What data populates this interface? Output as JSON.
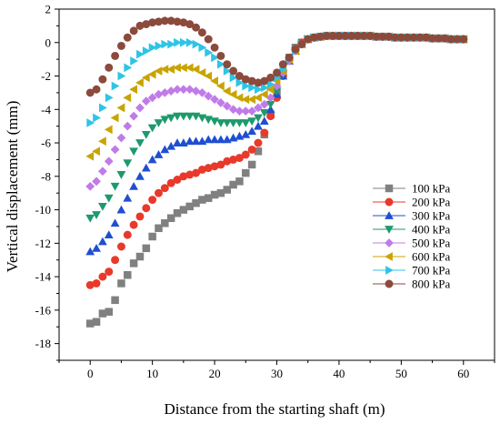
{
  "chart_data": {
    "type": "scatter",
    "xlabel": "Distance from the starting shaft (m)",
    "ylabel": "Vertical displacement (mm)",
    "xlim": [
      -5,
      65
    ],
    "ylim": [
      -19,
      2
    ],
    "x_ticks": [
      0,
      10,
      20,
      30,
      40,
      50,
      60
    ],
    "y_ticks": [
      2,
      0,
      -2,
      -4,
      -6,
      -8,
      -10,
      -12,
      -14,
      -16,
      -18
    ],
    "grid": false,
    "legend_position": "right",
    "series": [
      {
        "name": "100 kPa",
        "color": "#808080",
        "marker": "square",
        "x": [
          0,
          1,
          2,
          3,
          4,
          5,
          6,
          7,
          8,
          9,
          10,
          11,
          12,
          13,
          14,
          15,
          16,
          17,
          18,
          19,
          20,
          21,
          22,
          23,
          24,
          25,
          26,
          27,
          28,
          29,
          30,
          31,
          32,
          33,
          34,
          35,
          36,
          37,
          38,
          39,
          40,
          41,
          42,
          43,
          44,
          45,
          46,
          47,
          48,
          49,
          50,
          51,
          52,
          53,
          54,
          55,
          56,
          57,
          58,
          59,
          60
        ],
        "y": [
          -16.8,
          -16.7,
          -16.2,
          -16.1,
          -15.4,
          -14.4,
          -13.9,
          -13.2,
          -12.8,
          -12.3,
          -11.6,
          -11.1,
          -10.8,
          -10.5,
          -10.2,
          -10.0,
          -9.8,
          -9.6,
          -9.4,
          -9.3,
          -9.1,
          -9.0,
          -8.8,
          -8.5,
          -8.3,
          -7.8,
          -7.3,
          -6.5,
          -5.5,
          -4.3,
          -3.0,
          -1.8,
          -0.9,
          -0.3,
          0.0,
          0.2,
          0.3,
          0.35,
          0.4,
          0.4,
          0.4,
          0.4,
          0.4,
          0.4,
          0.4,
          0.4,
          0.35,
          0.35,
          0.35,
          0.3,
          0.3,
          0.3,
          0.3,
          0.3,
          0.3,
          0.25,
          0.25,
          0.25,
          0.2,
          0.2,
          0.2
        ]
      },
      {
        "name": "200 kPa",
        "color": "#e8392a",
        "marker": "circle",
        "x": [
          0,
          1,
          2,
          3,
          4,
          5,
          6,
          7,
          8,
          9,
          10,
          11,
          12,
          13,
          14,
          15,
          16,
          17,
          18,
          19,
          20,
          21,
          22,
          23,
          24,
          25,
          26,
          27,
          28,
          29,
          30,
          31,
          32,
          33,
          34,
          35,
          36,
          37,
          38,
          39,
          40,
          41,
          42,
          43,
          44,
          45,
          46,
          47,
          48,
          49,
          50,
          51,
          52,
          53,
          54,
          55,
          56,
          57,
          58,
          59,
          60
        ],
        "y": [
          -14.5,
          -14.4,
          -14.0,
          -13.7,
          -13.0,
          -12.2,
          -11.5,
          -10.9,
          -10.4,
          -9.9,
          -9.4,
          -9.0,
          -8.7,
          -8.4,
          -8.2,
          -8.0,
          -7.9,
          -7.8,
          -7.6,
          -7.5,
          -7.4,
          -7.3,
          -7.1,
          -7.0,
          -6.9,
          -6.7,
          -6.4,
          -6.0,
          -5.4,
          -4.4,
          -3.3,
          -2.0,
          -1.0,
          -0.4,
          0.0,
          0.2,
          0.3,
          0.35,
          0.4,
          0.4,
          0.4,
          0.4,
          0.4,
          0.4,
          0.4,
          0.4,
          0.35,
          0.35,
          0.35,
          0.3,
          0.3,
          0.3,
          0.3,
          0.3,
          0.3,
          0.25,
          0.25,
          0.25,
          0.2,
          0.2,
          0.2
        ]
      },
      {
        "name": "300 kPa",
        "color": "#1f4fd1",
        "marker": "triangle-up",
        "x": [
          0,
          1,
          2,
          3,
          4,
          5,
          6,
          7,
          8,
          9,
          10,
          11,
          12,
          13,
          14,
          15,
          16,
          17,
          18,
          19,
          20,
          21,
          22,
          23,
          24,
          25,
          26,
          27,
          28,
          29,
          30,
          31,
          32,
          33,
          34,
          35,
          36,
          37,
          38,
          39,
          40,
          41,
          42,
          43,
          44,
          45,
          46,
          47,
          48,
          49,
          50,
          51,
          52,
          53,
          54,
          55,
          56,
          57,
          58,
          59,
          60
        ],
        "y": [
          -12.5,
          -12.3,
          -11.9,
          -11.5,
          -10.8,
          -10.0,
          -9.3,
          -8.6,
          -8.0,
          -7.5,
          -7.0,
          -6.7,
          -6.4,
          -6.2,
          -6.0,
          -6.0,
          -5.9,
          -5.9,
          -5.9,
          -5.8,
          -5.8,
          -5.8,
          -5.8,
          -5.7,
          -5.6,
          -5.5,
          -5.3,
          -5.0,
          -4.7,
          -4.0,
          -3.1,
          -2.0,
          -1.1,
          -0.5,
          -0.1,
          0.2,
          0.3,
          0.35,
          0.4,
          0.4,
          0.4,
          0.4,
          0.4,
          0.4,
          0.4,
          0.4,
          0.35,
          0.35,
          0.35,
          0.3,
          0.3,
          0.3,
          0.3,
          0.3,
          0.3,
          0.25,
          0.25,
          0.25,
          0.2,
          0.2,
          0.2
        ]
      },
      {
        "name": "400 kPa",
        "color": "#1d9a6c",
        "marker": "triangle-down",
        "x": [
          0,
          1,
          2,
          3,
          4,
          5,
          6,
          7,
          8,
          9,
          10,
          11,
          12,
          13,
          14,
          15,
          16,
          17,
          18,
          19,
          20,
          21,
          22,
          23,
          24,
          25,
          26,
          27,
          28,
          29,
          30,
          31,
          32,
          33,
          34,
          35,
          36,
          37,
          38,
          39,
          40,
          41,
          42,
          43,
          44,
          45,
          46,
          47,
          48,
          49,
          50,
          51,
          52,
          53,
          54,
          55,
          56,
          57,
          58,
          59,
          60
        ],
        "y": [
          -10.5,
          -10.3,
          -9.8,
          -9.3,
          -8.6,
          -7.9,
          -7.2,
          -6.5,
          -6.0,
          -5.5,
          -5.1,
          -4.8,
          -4.6,
          -4.5,
          -4.4,
          -4.4,
          -4.4,
          -4.4,
          -4.5,
          -4.6,
          -4.7,
          -4.8,
          -4.8,
          -4.8,
          -4.8,
          -4.8,
          -4.7,
          -4.5,
          -4.2,
          -3.7,
          -2.9,
          -1.9,
          -1.1,
          -0.5,
          -0.1,
          0.2,
          0.3,
          0.35,
          0.4,
          0.4,
          0.4,
          0.4,
          0.4,
          0.4,
          0.4,
          0.4,
          0.35,
          0.35,
          0.35,
          0.3,
          0.3,
          0.3,
          0.3,
          0.3,
          0.3,
          0.25,
          0.25,
          0.25,
          0.2,
          0.2,
          0.2
        ]
      },
      {
        "name": "500 kPa",
        "color": "#c07be8",
        "marker": "diamond",
        "x": [
          0,
          1,
          2,
          3,
          4,
          5,
          6,
          7,
          8,
          9,
          10,
          11,
          12,
          13,
          14,
          15,
          16,
          17,
          18,
          19,
          20,
          21,
          22,
          23,
          24,
          25,
          26,
          27,
          28,
          29,
          30,
          31,
          32,
          33,
          34,
          35,
          36,
          37,
          38,
          39,
          40,
          41,
          42,
          43,
          44,
          45,
          46,
          47,
          48,
          49,
          50,
          51,
          52,
          53,
          54,
          55,
          56,
          57,
          58,
          59,
          60
        ],
        "y": [
          -8.6,
          -8.3,
          -7.7,
          -7.1,
          -6.4,
          -5.7,
          -5.0,
          -4.4,
          -3.9,
          -3.5,
          -3.3,
          -3.1,
          -3.0,
          -2.9,
          -2.8,
          -2.8,
          -2.8,
          -2.9,
          -3.0,
          -3.2,
          -3.4,
          -3.6,
          -3.8,
          -4.0,
          -4.1,
          -4.1,
          -4.1,
          -3.9,
          -3.7,
          -3.3,
          -2.6,
          -1.8,
          -1.1,
          -0.5,
          -0.1,
          0.2,
          0.3,
          0.35,
          0.4,
          0.4,
          0.4,
          0.4,
          0.4,
          0.4,
          0.4,
          0.4,
          0.35,
          0.35,
          0.35,
          0.3,
          0.3,
          0.3,
          0.3,
          0.3,
          0.3,
          0.25,
          0.25,
          0.25,
          0.2,
          0.2,
          0.2
        ]
      },
      {
        "name": "600 kPa",
        "color": "#c9a400",
        "marker": "triangle-left",
        "x": [
          0,
          1,
          2,
          3,
          4,
          5,
          6,
          7,
          8,
          9,
          10,
          11,
          12,
          13,
          14,
          15,
          16,
          17,
          18,
          19,
          20,
          21,
          22,
          23,
          24,
          25,
          26,
          27,
          28,
          29,
          30,
          31,
          32,
          33,
          34,
          35,
          36,
          37,
          38,
          39,
          40,
          41,
          42,
          43,
          44,
          45,
          46,
          47,
          48,
          49,
          50,
          51,
          52,
          53,
          54,
          55,
          56,
          57,
          58,
          59,
          60
        ],
        "y": [
          -6.8,
          -6.5,
          -5.9,
          -5.2,
          -4.5,
          -3.9,
          -3.3,
          -2.8,
          -2.4,
          -2.1,
          -1.9,
          -1.7,
          -1.6,
          -1.6,
          -1.5,
          -1.5,
          -1.5,
          -1.6,
          -1.8,
          -2.0,
          -2.3,
          -2.6,
          -2.9,
          -3.1,
          -3.3,
          -3.4,
          -3.4,
          -3.3,
          -3.1,
          -2.8,
          -2.3,
          -1.7,
          -1.0,
          -0.5,
          -0.1,
          0.2,
          0.3,
          0.35,
          0.4,
          0.4,
          0.4,
          0.4,
          0.4,
          0.4,
          0.4,
          0.4,
          0.35,
          0.35,
          0.35,
          0.3,
          0.3,
          0.3,
          0.3,
          0.3,
          0.3,
          0.25,
          0.25,
          0.25,
          0.2,
          0.2,
          0.2
        ]
      },
      {
        "name": "700 kPa",
        "color": "#2ec4e6",
        "marker": "triangle-right",
        "x": [
          0,
          1,
          2,
          3,
          4,
          5,
          6,
          7,
          8,
          9,
          10,
          11,
          12,
          13,
          14,
          15,
          16,
          17,
          18,
          19,
          20,
          21,
          22,
          23,
          24,
          25,
          26,
          27,
          28,
          29,
          30,
          31,
          32,
          33,
          34,
          35,
          36,
          37,
          38,
          39,
          40,
          41,
          42,
          43,
          44,
          45,
          46,
          47,
          48,
          49,
          50,
          51,
          52,
          53,
          54,
          55,
          56,
          57,
          58,
          59,
          60
        ],
        "y": [
          -4.8,
          -4.5,
          -3.9,
          -3.3,
          -2.6,
          -2.0,
          -1.5,
          -1.1,
          -0.7,
          -0.5,
          -0.3,
          -0.2,
          -0.1,
          -0.1,
          0.0,
          0.0,
          0.0,
          -0.1,
          -0.3,
          -0.6,
          -0.9,
          -1.3,
          -1.7,
          -2.1,
          -2.4,
          -2.6,
          -2.7,
          -2.8,
          -2.7,
          -2.5,
          -2.1,
          -1.6,
          -1.0,
          -0.5,
          -0.1,
          0.2,
          0.3,
          0.35,
          0.4,
          0.4,
          0.4,
          0.4,
          0.4,
          0.4,
          0.4,
          0.4,
          0.35,
          0.35,
          0.35,
          0.3,
          0.3,
          0.3,
          0.3,
          0.3,
          0.3,
          0.25,
          0.25,
          0.25,
          0.2,
          0.2,
          0.2
        ]
      },
      {
        "name": "800 kPa",
        "color": "#8b4a3c",
        "marker": "circle",
        "x": [
          0,
          1,
          2,
          3,
          4,
          5,
          6,
          7,
          8,
          9,
          10,
          11,
          12,
          13,
          14,
          15,
          16,
          17,
          18,
          19,
          20,
          21,
          22,
          23,
          24,
          25,
          26,
          27,
          28,
          29,
          30,
          31,
          32,
          33,
          34,
          35,
          36,
          37,
          38,
          39,
          40,
          41,
          42,
          43,
          44,
          45,
          46,
          47,
          48,
          49,
          50,
          51,
          52,
          53,
          54,
          55,
          56,
          57,
          58,
          59,
          60
        ],
        "y": [
          -3.0,
          -2.8,
          -2.2,
          -1.5,
          -0.8,
          -0.2,
          0.3,
          0.7,
          1.0,
          1.1,
          1.2,
          1.25,
          1.3,
          1.3,
          1.25,
          1.2,
          1.1,
          0.9,
          0.6,
          0.2,
          -0.3,
          -0.8,
          -1.3,
          -1.7,
          -2.0,
          -2.2,
          -2.3,
          -2.4,
          -2.3,
          -2.1,
          -1.8,
          -1.3,
          -0.9,
          -0.4,
          -0.1,
          0.2,
          0.3,
          0.35,
          0.4,
          0.4,
          0.4,
          0.4,
          0.4,
          0.4,
          0.4,
          0.4,
          0.35,
          0.35,
          0.35,
          0.3,
          0.3,
          0.3,
          0.3,
          0.3,
          0.3,
          0.25,
          0.25,
          0.25,
          0.2,
          0.2,
          0.2
        ]
      }
    ]
  }
}
